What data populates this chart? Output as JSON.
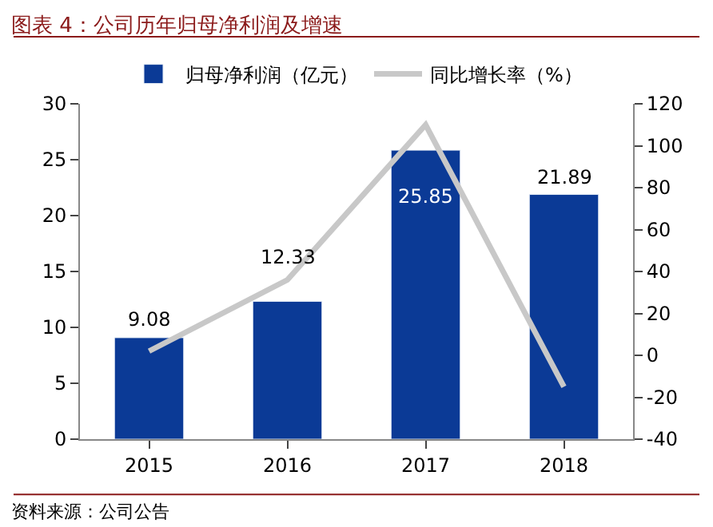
{
  "chart_data": {
    "type": "bar",
    "title": "图表 4：公司历年归母净利润及增速",
    "categories": [
      "2015",
      "2016",
      "2017",
      "2018"
    ],
    "series": [
      {
        "name": "归母净利润（亿元）",
        "color": "#0b3a96",
        "values": [
          9.08,
          12.33,
          25.85,
          21.89
        ],
        "data_labels": true
      },
      {
        "name": "同比增长率（%）",
        "type": "line",
        "axis": "y2",
        "color": "#c8c8c8",
        "values": [
          2,
          36,
          110,
          -15
        ],
        "marker": "none",
        "line_style": "solid"
      }
    ],
    "ylim": [
      0,
      30
    ],
    "yticks": [
      0,
      5,
      10,
      15,
      20,
      25,
      30
    ],
    "y2lim": [
      -40,
      120
    ],
    "y2ticks": [
      -40,
      -20,
      0,
      20,
      40,
      60,
      80,
      100,
      120
    ],
    "legend": "top",
    "annotations": [
      "资料来源：公司公告"
    ]
  }
}
